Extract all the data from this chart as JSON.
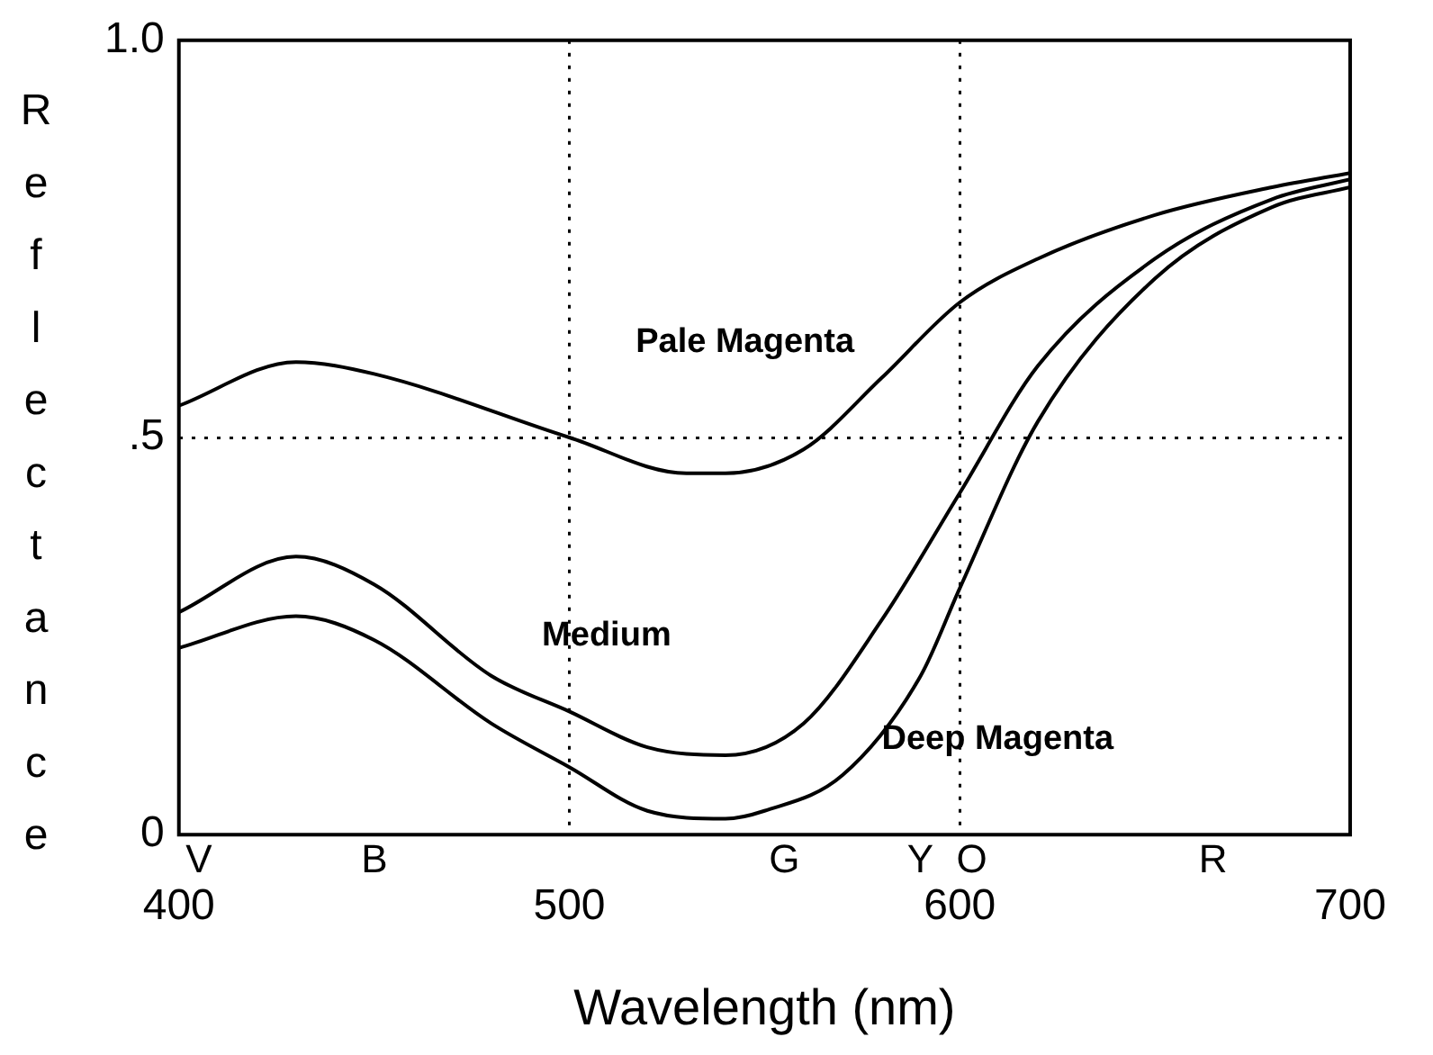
{
  "chart_data": {
    "type": "line",
    "xlabel": "Wavelength (nm)",
    "ylabel": "Reflectance",
    "xlim": [
      400,
      700
    ],
    "xticks": [
      400,
      500,
      600,
      700
    ],
    "ylim": [
      0,
      1
    ],
    "yticks": [
      0,
      {
        "value": 0.5,
        "label": ".5"
      },
      {
        "value": 1,
        "label": "1.0"
      }
    ],
    "grid": true,
    "line_style": "solid",
    "marker": "none",
    "legend": false,
    "annotations": [
      "V",
      "B",
      "G",
      "Y",
      "O",
      "R"
    ],
    "series": [
      {
        "name": "Pale Magenta",
        "color": "#000000",
        "x": [
          400,
          430,
          450,
          500,
          530,
          540,
          560,
          580,
          600,
          620,
          650,
          680,
          700
        ],
        "values": [
          0.54,
          0.595,
          0.58,
          0.5,
          0.455,
          0.455,
          0.485,
          0.575,
          0.67,
          0.725,
          0.78,
          0.815,
          0.833
        ]
      },
      {
        "name": "Medium",
        "color": "#000000",
        "x": [
          400,
          430,
          450,
          480,
          500,
          520,
          540,
          560,
          580,
          600,
          620,
          650,
          680,
          700
        ],
        "values": [
          0.28,
          0.35,
          0.315,
          0.2,
          0.155,
          0.11,
          0.1,
          0.14,
          0.27,
          0.43,
          0.59,
          0.725,
          0.8,
          0.825
        ]
      },
      {
        "name": "Deep Magenta",
        "color": "#000000",
        "x": [
          400,
          430,
          450,
          480,
          500,
          520,
          540,
          550,
          570,
          590,
          600,
          620,
          650,
          680,
          700
        ],
        "values": [
          0.235,
          0.275,
          0.245,
          0.14,
          0.085,
          0.03,
          0.02,
          0.03,
          0.075,
          0.2,
          0.31,
          0.52,
          0.7,
          0.79,
          0.815
        ]
      }
    ]
  }
}
